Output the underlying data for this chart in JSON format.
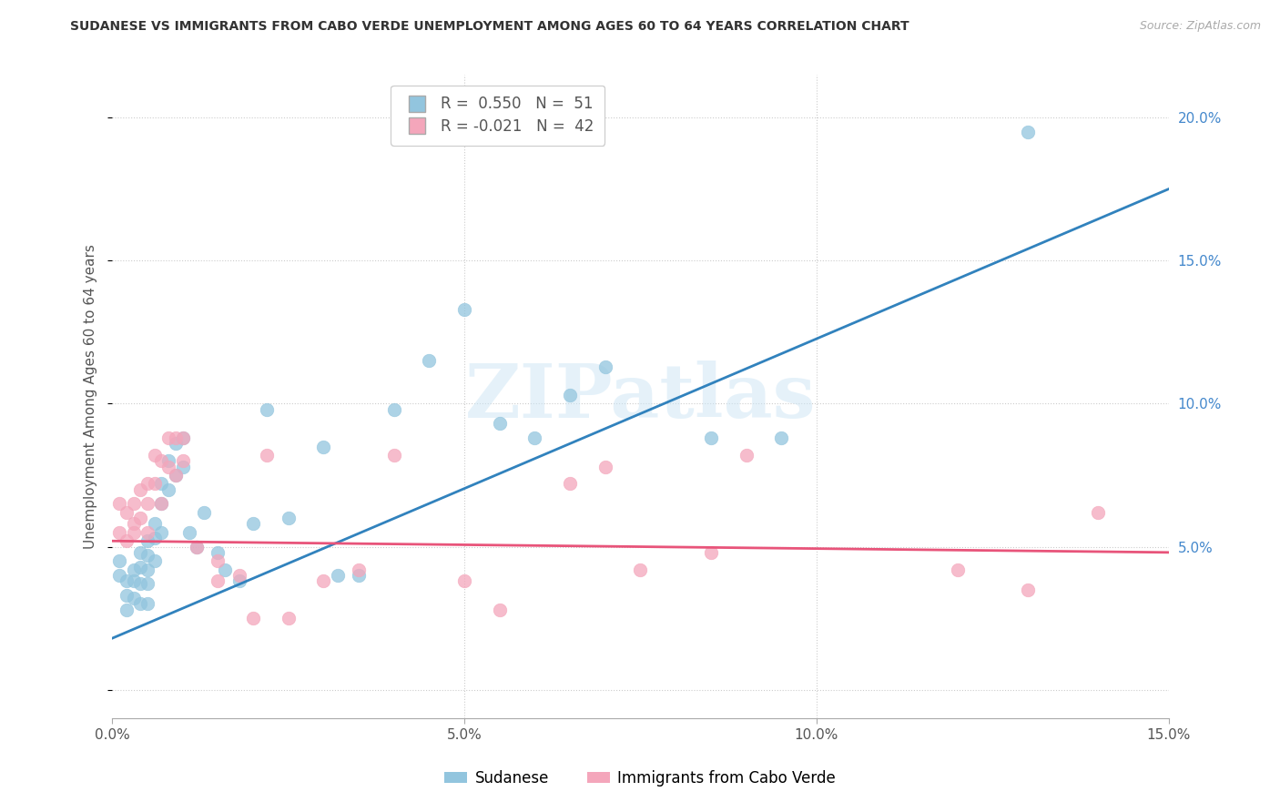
{
  "title": "SUDANESE VS IMMIGRANTS FROM CABO VERDE UNEMPLOYMENT AMONG AGES 60 TO 64 YEARS CORRELATION CHART",
  "source": "Source: ZipAtlas.com",
  "ylabel": "Unemployment Among Ages 60 to 64 years",
  "xlim": [
    0.0,
    0.15
  ],
  "ylim": [
    -0.01,
    0.215
  ],
  "xticks": [
    0.0,
    0.05,
    0.1,
    0.15
  ],
  "yticks": [
    0.0,
    0.05,
    0.1,
    0.15,
    0.2
  ],
  "xtick_labels": [
    "0.0%",
    "5.0%",
    "10.0%",
    "15.0%"
  ],
  "ytick_labels_right": [
    "",
    "5.0%",
    "10.0%",
    "15.0%",
    "20.0%"
  ],
  "watermark_text": "ZIPatlas",
  "color_blue": "#92c5de",
  "color_pink": "#f4a6bb",
  "color_blue_line": "#3182bd",
  "color_pink_line": "#e8547a",
  "legend_label_blue": "Sudanese",
  "legend_label_pink": "Immigrants from Cabo Verde",
  "legend_R1_color": "#4488cc",
  "legend_N1_color": "#4488cc",
  "legend_R2_color": "#dd4477",
  "legend_N2_color": "#dd4477",
  "sudanese_x": [
    0.001,
    0.001,
    0.002,
    0.002,
    0.002,
    0.003,
    0.003,
    0.003,
    0.004,
    0.004,
    0.004,
    0.004,
    0.005,
    0.005,
    0.005,
    0.005,
    0.005,
    0.006,
    0.006,
    0.006,
    0.007,
    0.007,
    0.007,
    0.008,
    0.008,
    0.009,
    0.009,
    0.01,
    0.01,
    0.011,
    0.012,
    0.013,
    0.015,
    0.016,
    0.018,
    0.02,
    0.022,
    0.025,
    0.03,
    0.032,
    0.035,
    0.04,
    0.045,
    0.05,
    0.055,
    0.06,
    0.065,
    0.07,
    0.085,
    0.095,
    0.13
  ],
  "sudanese_y": [
    0.045,
    0.04,
    0.038,
    0.033,
    0.028,
    0.042,
    0.038,
    0.032,
    0.048,
    0.043,
    0.037,
    0.03,
    0.052,
    0.047,
    0.042,
    0.037,
    0.03,
    0.058,
    0.053,
    0.045,
    0.072,
    0.065,
    0.055,
    0.08,
    0.07,
    0.086,
    0.075,
    0.088,
    0.078,
    0.055,
    0.05,
    0.062,
    0.048,
    0.042,
    0.038,
    0.058,
    0.098,
    0.06,
    0.085,
    0.04,
    0.04,
    0.098,
    0.115,
    0.133,
    0.093,
    0.088,
    0.103,
    0.113,
    0.088,
    0.088,
    0.195
  ],
  "caboverde_x": [
    0.001,
    0.001,
    0.002,
    0.002,
    0.003,
    0.003,
    0.003,
    0.004,
    0.004,
    0.005,
    0.005,
    0.005,
    0.006,
    0.006,
    0.007,
    0.007,
    0.008,
    0.008,
    0.009,
    0.009,
    0.01,
    0.01,
    0.012,
    0.015,
    0.015,
    0.018,
    0.02,
    0.022,
    0.025,
    0.03,
    0.035,
    0.04,
    0.05,
    0.055,
    0.065,
    0.07,
    0.075,
    0.085,
    0.09,
    0.12,
    0.13,
    0.14
  ],
  "caboverde_y": [
    0.065,
    0.055,
    0.062,
    0.052,
    0.058,
    0.065,
    0.055,
    0.07,
    0.06,
    0.072,
    0.065,
    0.055,
    0.082,
    0.072,
    0.08,
    0.065,
    0.088,
    0.078,
    0.088,
    0.075,
    0.088,
    0.08,
    0.05,
    0.038,
    0.045,
    0.04,
    0.025,
    0.082,
    0.025,
    0.038,
    0.042,
    0.082,
    0.038,
    0.028,
    0.072,
    0.078,
    0.042,
    0.048,
    0.082,
    0.042,
    0.035,
    0.062
  ],
  "blue_line_x": [
    0.0,
    0.15
  ],
  "blue_line_y": [
    0.018,
    0.175
  ],
  "pink_line_x": [
    0.0,
    0.15
  ],
  "pink_line_y": [
    0.052,
    0.048
  ]
}
